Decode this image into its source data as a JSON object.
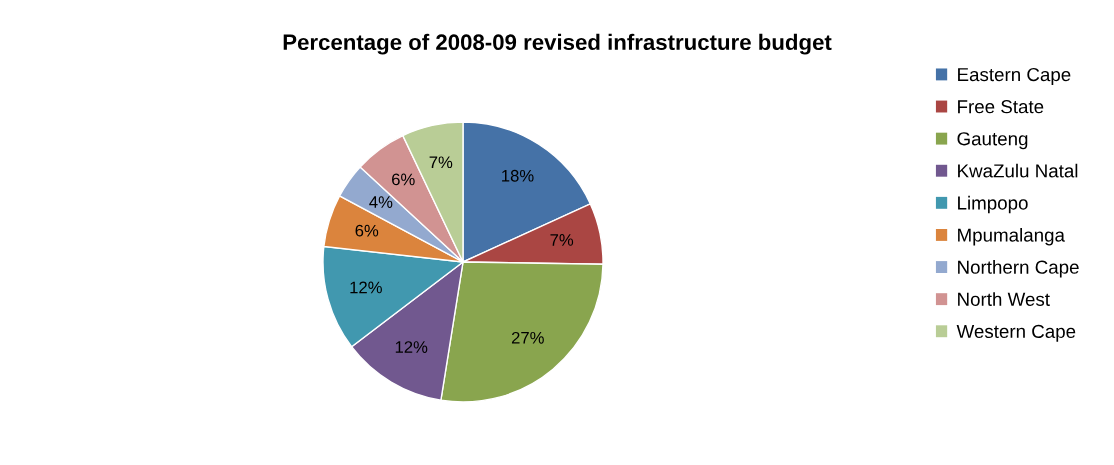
{
  "chart_data": {
    "type": "pie",
    "title": "Percentage of 2008-09 revised infrastructure budget",
    "categories": [
      "Eastern Cape",
      "Free State",
      "Gauteng",
      "KwaZulu Natal",
      "Limpopo",
      "Mpumalanga",
      "Northern Cape",
      "North West",
      "Western Cape"
    ],
    "values": [
      18,
      7,
      27,
      12,
      12,
      6,
      4,
      6,
      7
    ],
    "value_labels": [
      "18%",
      "7%",
      "27%",
      "12%",
      "12%",
      "6%",
      "4%",
      "6%",
      "7%"
    ],
    "colors": [
      "#4572a7",
      "#aa4643",
      "#89a54e",
      "#71588f",
      "#4198af",
      "#db843d",
      "#93a9cf",
      "#d19392",
      "#b9cd96"
    ],
    "legend": "right"
  }
}
